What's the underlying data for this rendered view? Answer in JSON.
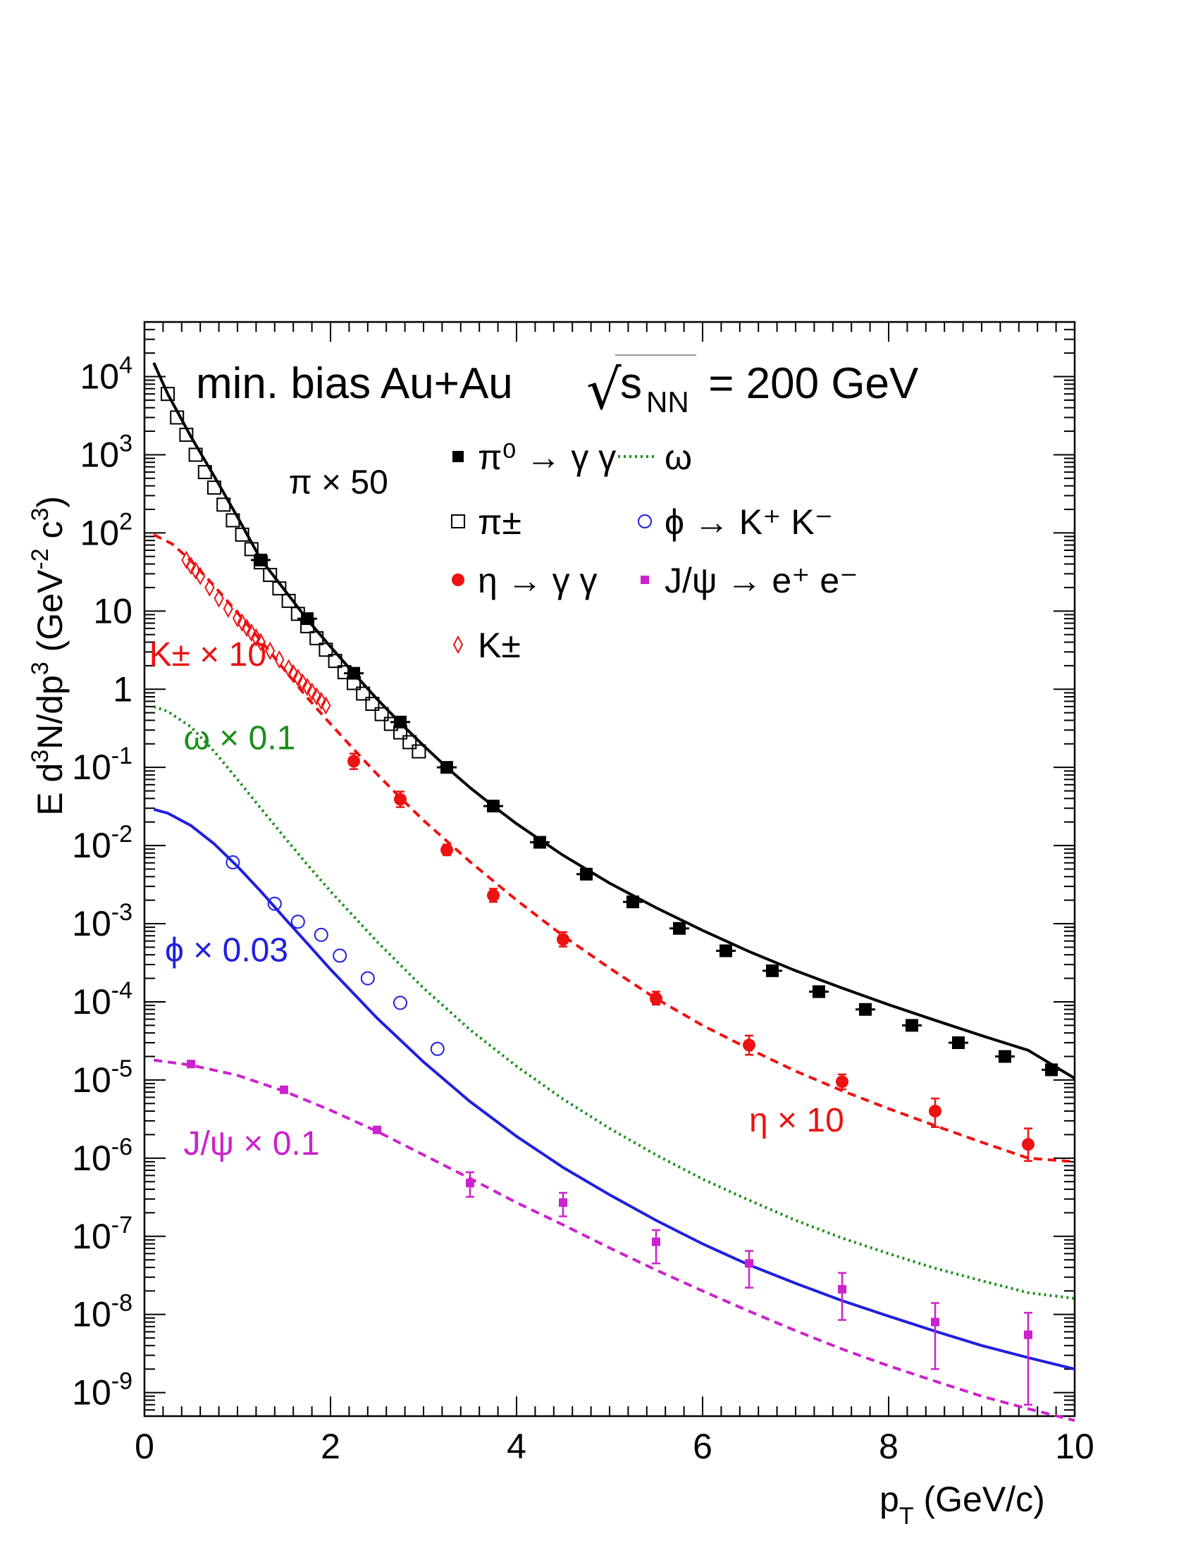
{
  "chart_data": {
    "type": "scatter",
    "title": "min. bias Au+Au",
    "title_energy": {
      "sqrt_symbol": "√",
      "s": "s",
      "sub": "NN",
      "rest": " = 200 GeV"
    },
    "xlabel": {
      "main": "p",
      "sub": "T",
      "rest": " (GeV/c)"
    },
    "ylabel": {
      "p1": "E d",
      "s1": "3",
      "p2": "N/dp",
      "s2": "3",
      "p3": " (GeV",
      "s3": "-2",
      "p4": " c",
      "s4": "3",
      "p5": ")"
    },
    "xlim": [
      0,
      10
    ],
    "ylim": [
      5e-10,
      50000
    ],
    "y_scale": "log",
    "grid": false,
    "x_ticks": [
      {
        "v": 0,
        "label": "0"
      },
      {
        "v": 2,
        "label": "2"
      },
      {
        "v": 4,
        "label": "4"
      },
      {
        "v": 6,
        "label": "6"
      },
      {
        "v": 8,
        "label": "8"
      },
      {
        "v": 10,
        "label": "10"
      }
    ],
    "y_ticks": [
      {
        "v": 10000,
        "label": "10",
        "exp": "4"
      },
      {
        "v": 1000,
        "label": "10",
        "exp": "3"
      },
      {
        "v": 100,
        "label": "10",
        "exp": "2"
      },
      {
        "v": 10,
        "label": "10",
        "exp": ""
      },
      {
        "v": 1,
        "label": "1",
        "exp": ""
      },
      {
        "v": 0.1,
        "label": "10",
        "exp": "-1"
      },
      {
        "v": 0.01,
        "label": "10",
        "exp": "-2"
      },
      {
        "v": 0.001,
        "label": "10",
        "exp": "-3"
      },
      {
        "v": 0.0001,
        "label": "10",
        "exp": "-4"
      },
      {
        "v": 1e-05,
        "label": "10",
        "exp": "-5"
      },
      {
        "v": 1e-06,
        "label": "10",
        "exp": "-6"
      },
      {
        "v": 1e-07,
        "label": "10",
        "exp": "-7"
      },
      {
        "v": 1e-08,
        "label": "10",
        "exp": "-8"
      },
      {
        "v": 1e-09,
        "label": "10",
        "exp": "-9"
      }
    ],
    "legend_placement": "top-center",
    "legend": [
      {
        "id": "pi0",
        "marker": "filled-square",
        "color": "#000000",
        "text": "π⁰ → γ γ"
      },
      {
        "id": "omega",
        "marker": "dotted-line",
        "color": "#1a8f1a",
        "text": "ω"
      },
      {
        "id": "pipm",
        "marker": "open-square",
        "color": "#000000",
        "text": "π±"
      },
      {
        "id": "phi",
        "marker": "open-circle",
        "color": "#1f1fe0",
        "text": "ϕ → K⁺ K⁻"
      },
      {
        "id": "eta",
        "marker": "filled-circle",
        "color": "#ee1111",
        "text": "η → γ γ"
      },
      {
        "id": "jpsi",
        "marker": "filled-small-square",
        "color": "#cc22cc",
        "text": "J/ψ → e⁺ e⁻"
      },
      {
        "id": "kpm",
        "marker": "open-diamond",
        "color": "#ee1111",
        "text": "K±"
      }
    ],
    "annotations": [
      {
        "id": "pi-scale",
        "text": "π × 50",
        "color": "#000000",
        "x": 1.55,
        "y": 320
      },
      {
        "id": "k-scale",
        "text": "K± × 10",
        "color": "#ee1111",
        "x": 0.05,
        "y": 2.0
      },
      {
        "id": "omega-scale",
        "text": "ω × 0.1",
        "color": "#1a8f1a",
        "x": 0.42,
        "y": 0.17
      },
      {
        "id": "phi-scale",
        "text": "ϕ × 0.03",
        "color": "#1f1fe0",
        "x": 0.22,
        "y": 0.00033
      },
      {
        "id": "jpsi-scale",
        "text": "J/ψ × 0.1",
        "color": "#cc22cc",
        "x": 0.42,
        "y": 1.1e-06
      },
      {
        "id": "eta-scale",
        "text": "η × 10",
        "color": "#ee1111",
        "x": 6.5,
        "y": 2.2e-06
      }
    ],
    "series": [
      {
        "id": "pi0",
        "marker": "filled-square",
        "color": "#000000",
        "x": [
          1.25,
          1.75,
          2.25,
          2.75,
          3.25,
          3.75,
          4.25,
          4.75,
          5.25,
          5.75,
          6.25,
          6.75,
          7.25,
          7.75,
          8.25,
          8.75,
          9.25,
          9.75
        ],
        "y": [
          45,
          8,
          1.6,
          0.38,
          0.1,
          0.032,
          0.011,
          0.0043,
          0.0019,
          0.00087,
          0.00045,
          0.00025,
          0.000135,
          8e-05,
          5e-05,
          3e-05,
          2e-05,
          1.35e-05
        ]
      },
      {
        "id": "pipm",
        "marker": "open-square",
        "color": "#000000",
        "x": [
          0.25,
          0.35,
          0.45,
          0.55,
          0.65,
          0.75,
          0.85,
          0.95,
          1.05,
          1.15,
          1.25,
          1.35,
          1.45,
          1.55,
          1.65,
          1.75,
          1.85,
          1.95,
          2.05,
          2.15,
          2.25,
          2.35,
          2.45,
          2.55,
          2.65,
          2.75,
          2.85,
          2.95
        ],
        "y": [
          6000,
          3000,
          1800,
          1000,
          600,
          380,
          230,
          145,
          95,
          62,
          42,
          29,
          19.5,
          13.5,
          9.2,
          6.4,
          4.5,
          3.2,
          2.3,
          1.65,
          1.2,
          0.88,
          0.65,
          0.48,
          0.36,
          0.28,
          0.21,
          0.16
        ]
      },
      {
        "id": "eta",
        "marker": "filled-circle",
        "color": "#ee1111",
        "x": [
          2.25,
          2.75,
          3.25,
          3.75,
          4.5,
          5.5,
          6.5,
          7.5,
          8.5,
          9.5
        ],
        "y": [
          0.12,
          0.039,
          0.0088,
          0.0023,
          0.00063,
          0.00011,
          2.8e-05,
          9.5e-06,
          4e-06,
          1.5e-06
        ],
        "y_err": [
          [
            0.095,
            0.15
          ],
          [
            0.031,
            0.049
          ],
          [
            0.0075,
            0.0103
          ],
          [
            0.0019,
            0.0028
          ],
          [
            0.00051,
            0.00078
          ],
          [
            9.2e-05,
            0.000135
          ],
          [
            2.1e-05,
            3.7e-05
          ],
          [
            7.6e-06,
            1.18e-05
          ],
          [
            2.5e-06,
            5.8e-06
          ],
          [
            9.2e-07,
            2.4e-06
          ]
        ]
      },
      {
        "id": "kpm",
        "marker": "open-diamond",
        "color": "#ee1111",
        "x": [
          0.45,
          0.5,
          0.55,
          0.6,
          0.7,
          0.8,
          0.9,
          1.0,
          1.05,
          1.1,
          1.15,
          1.2,
          1.25,
          1.35,
          1.45,
          1.55,
          1.6,
          1.65,
          1.7,
          1.75,
          1.8,
          1.85,
          1.9,
          1.95
        ],
        "y": [
          45,
          38,
          33,
          28,
          20,
          14.5,
          10.7,
          8.1,
          7.1,
          6.1,
          5.3,
          4.6,
          4.0,
          3.1,
          2.4,
          1.85,
          1.6,
          1.4,
          1.22,
          1.07,
          0.93,
          0.81,
          0.71,
          0.62
        ]
      },
      {
        "id": "phi",
        "marker": "open-circle",
        "color": "#1f1fe0",
        "x": [
          0.95,
          1.4,
          1.65,
          1.9,
          2.1,
          2.4,
          2.75,
          3.15
        ],
        "y": [
          0.0061,
          0.0018,
          0.00106,
          0.00072,
          0.00039,
          0.0002,
          9.7e-05,
          2.5e-05
        ]
      },
      {
        "id": "jpsi",
        "marker": "filled-small-square",
        "color": "#cc22cc",
        "x": [
          0.5,
          1.5,
          2.5,
          3.5,
          4.5,
          5.5,
          6.5,
          7.5,
          8.5,
          9.5
        ],
        "y": [
          1.6e-05,
          7.5e-06,
          2.3e-06,
          4.8e-07,
          2.7e-07,
          8.5e-08,
          4.5e-08,
          2.1e-08,
          8e-09,
          5.5e-09
        ],
        "y_err": [
          [
            1.48e-05,
            1.72e-05
          ],
          [
            6.9e-06,
            8.1e-06
          ],
          [
            2.1e-06,
            2.5e-06
          ],
          [
            3.2e-07,
            6.6e-07
          ],
          [
            1.8e-07,
            3.6e-07
          ],
          [
            4.5e-08,
            1.2e-07
          ],
          [
            2.2e-08,
            6.5e-08
          ],
          [
            8.5e-09,
            3.4e-08
          ],
          [
            2e-09,
            1.4e-08
          ],
          [
            7e-10,
            1.05e-08
          ]
        ]
      }
    ],
    "curves": [
      {
        "id": "pi-fit",
        "style": "solid",
        "color": "#000000",
        "x": [
          0.1,
          0.25,
          0.5,
          0.75,
          1.0,
          1.25,
          1.5,
          1.75,
          2.0,
          2.25,
          2.5,
          2.75,
          3.0,
          3.25,
          3.5,
          3.75,
          4.0,
          4.5,
          5.0,
          5.5,
          6.0,
          6.5,
          7.0,
          7.5,
          8.0,
          8.5,
          9.0,
          9.5,
          10.0
        ],
        "y": [
          15000,
          6000,
          1700,
          530,
          160,
          46,
          19,
          7.8,
          3.5,
          1.6,
          0.75,
          0.37,
          0.19,
          0.1,
          0.055,
          0.032,
          0.019,
          0.0075,
          0.0033,
          0.0016,
          0.00082,
          0.00044,
          0.00025,
          0.00015,
          9.2e-05,
          5.8e-05,
          3.7e-05,
          2.4e-05,
          1.05e-05
        ]
      },
      {
        "id": "eta-fit",
        "style": "dashed",
        "color": "#ee1111",
        "x": [
          0.1,
          0.3,
          0.5,
          0.75,
          1.0,
          1.25,
          1.5,
          1.75,
          2.0,
          2.25,
          2.5,
          2.75,
          3.0,
          3.5,
          4.0,
          4.5,
          5.0,
          5.5,
          6.0,
          6.5,
          7.0,
          7.5,
          8.0,
          8.5,
          9.0,
          9.5,
          10.0
        ],
        "y": [
          95,
          72,
          44,
          21,
          9.5,
          4.2,
          1.8,
          0.78,
          0.36,
          0.17,
          0.082,
          0.041,
          0.021,
          0.0062,
          0.002,
          0.0007,
          0.00027,
          0.00011,
          5e-05,
          2.5e-05,
          1.3e-05,
          7.3e-06,
          4.3e-06,
          2.6e-06,
          1.6e-06,
          1e-06,
          9e-07
        ]
      },
      {
        "id": "omega-curve",
        "style": "dotted",
        "color": "#1a8f1a",
        "x": [
          0.1,
          0.25,
          0.5,
          0.75,
          1.0,
          1.25,
          1.5,
          1.75,
          2.0,
          2.5,
          3.0,
          3.5,
          4.0,
          4.5,
          5.0,
          5.5,
          6.0,
          6.5,
          7.0,
          7.5,
          8.0,
          8.5,
          9.0,
          9.5,
          10.0
        ],
        "y": [
          0.6,
          0.52,
          0.33,
          0.16,
          0.07,
          0.03,
          0.013,
          0.0057,
          0.0026,
          0.00059,
          0.00015,
          4.4e-05,
          1.5e-05,
          5.7e-06,
          2.4e-06,
          1.1e-06,
          5.4e-07,
          2.9e-07,
          1.6e-07,
          9.5e-08,
          6e-08,
          3.9e-08,
          2.7e-08,
          1.9e-08,
          1.6e-08
        ]
      },
      {
        "id": "phi-curve",
        "style": "solid",
        "color": "#1f1fe0",
        "x": [
          0.1,
          0.25,
          0.5,
          0.75,
          1.0,
          1.25,
          1.5,
          1.75,
          2.0,
          2.5,
          3.0,
          3.5,
          4.0,
          4.5,
          5.0,
          5.5,
          6.0,
          6.5,
          7.0,
          7.5,
          8.0,
          8.5,
          9.0,
          9.5,
          10.0
        ],
        "y": [
          0.029,
          0.026,
          0.018,
          0.0105,
          0.0054,
          0.0026,
          0.0012,
          0.00056,
          0.00026,
          6.2e-05,
          1.7e-05,
          5.3e-06,
          1.9e-06,
          7.6e-07,
          3.4e-07,
          1.6e-07,
          8e-08,
          4.3e-08,
          2.5e-08,
          1.5e-08,
          9.5e-09,
          6.1e-09,
          4e-09,
          2.8e-09,
          2e-09
        ]
      },
      {
        "id": "jpsi-curve",
        "style": "dashed",
        "color": "#cc22cc",
        "x": [
          0.1,
          0.5,
          1.0,
          1.5,
          2.0,
          2.5,
          3.0,
          3.5,
          4.0,
          4.5,
          5.0,
          5.5,
          6.0,
          6.5,
          7.0,
          7.5,
          8.0,
          8.5,
          9.0,
          9.5,
          10.0
        ],
        "y": [
          1.8e-05,
          1.55e-05,
          1.15e-05,
          7.2e-06,
          4.1e-06,
          2.2e-06,
          1.1e-06,
          5.5e-07,
          2.7e-07,
          1.4e-07,
          7.1e-08,
          3.7e-08,
          2e-08,
          1.1e-08,
          6.2e-09,
          3.6e-09,
          2.2e-09,
          1.4e-09,
          9e-10,
          6.2e-10,
          4.4e-10
        ]
      }
    ]
  }
}
